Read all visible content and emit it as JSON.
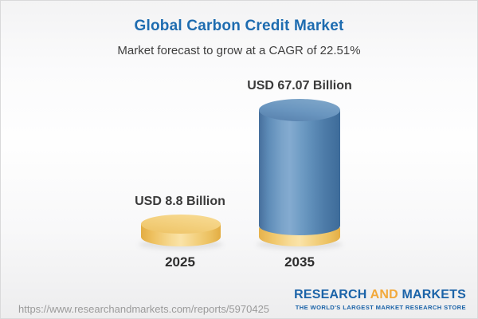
{
  "header": {
    "title": "Global Carbon Credit Market",
    "subtitle": "Market forecast to grow at a CAGR of 22.51%"
  },
  "chart_data": {
    "type": "bar",
    "style": "3d-cylinder",
    "categories": [
      "2025",
      "2035"
    ],
    "values": [
      8.8,
      67.07
    ],
    "value_unit": "USD Billion",
    "value_labels": [
      "USD 8.8 Billion",
      "USD 67.07 Billion"
    ],
    "cagr_percent": 22.51,
    "grid": false,
    "legend": "none",
    "colors": {
      "cylinder_2025": "#f2cd78",
      "cylinder_2035": "#5d8cb7",
      "cylinder_2035_base": "#f2cd78",
      "title_accent": "#1e6cb0",
      "label_text": "#3a3a3a"
    }
  },
  "footer": {
    "url": "https://www.researchandmarkets.com/reports/5970425",
    "logo": {
      "word1": "RESEARCH",
      "word2": "AND",
      "word3": "MARKETS",
      "tagline": "THE WORLD'S LARGEST MARKET RESEARCH STORE",
      "blue": "#1b63a8",
      "gold": "#f2a93b"
    }
  }
}
